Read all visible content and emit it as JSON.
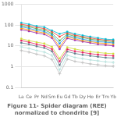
{
  "chart_data": {
    "type": "line",
    "title": "Figure 11- Spider diagram (REE) normalized to chondrite [9]",
    "categories": [
      "La",
      "Ce",
      "Pr",
      "Nd",
      "Sm",
      "Eu",
      "Gd",
      "Tb",
      "Dy",
      "Ho",
      "Er",
      "Tm",
      "Yb"
    ],
    "log": "y",
    "ylim": [
      0.1,
      1000
    ],
    "yticks": [
      0.1,
      1,
      10,
      100,
      1000
    ],
    "grid": "y",
    "series": [
      {
        "color": "#00bcd4",
        "marker": "square",
        "values": [
          130,
          110,
          90,
          80,
          55,
          38,
          48,
          38,
          32,
          28,
          24,
          21,
          20
        ]
      },
      {
        "color": "#f44336",
        "marker": "square",
        "values": [
          110,
          95,
          78,
          68,
          48,
          28,
          42,
          33,
          28,
          24,
          21,
          19,
          18
        ]
      },
      {
        "color": "#4caf50",
        "marker": "square",
        "values": [
          95,
          82,
          67,
          58,
          40,
          18,
          36,
          29,
          25,
          21,
          19,
          17,
          16
        ]
      },
      {
        "color": "#2196f3",
        "marker": "square",
        "values": [
          82,
          70,
          57,
          49,
          34,
          13,
          31,
          25,
          21,
          18,
          16,
          15,
          14
        ]
      },
      {
        "color": "#ff9800",
        "marker": "square",
        "values": [
          70,
          60,
          49,
          42,
          29,
          9,
          27,
          22,
          18,
          16,
          14,
          13,
          12
        ]
      },
      {
        "color": "#9c27b0",
        "marker": "square",
        "values": [
          60,
          51,
          42,
          36,
          24,
          7,
          23,
          19,
          16,
          14,
          12,
          11,
          10
        ]
      },
      {
        "color": "#cddc39",
        "marker": "square",
        "values": [
          22,
          18,
          15,
          13,
          9,
          2.5,
          8.5,
          7,
          6,
          5.2,
          4.8,
          4.4,
          4.2
        ]
      },
      {
        "color": "#e91e63",
        "marker": "square",
        "values": [
          18,
          15,
          12,
          10,
          7,
          1.8,
          6.8,
          5.5,
          4.8,
          4.2,
          3.8,
          3.5,
          3.3
        ]
      },
      {
        "color": "#607d8b",
        "marker": "square",
        "values": [
          14,
          12,
          9.5,
          8,
          5.5,
          1.2,
          5.3,
          4.3,
          3.7,
          3.3,
          3.0,
          2.7,
          2.6
        ]
      },
      {
        "color": "#b2dfdb",
        "marker": "plus",
        "values": [
          9,
          7.5,
          6,
          5,
          3.5,
          0.7,
          3.5,
          2.8,
          2.4,
          2.1,
          1.9,
          1.7,
          1.6
        ]
      },
      {
        "color": "#bdbdbd",
        "marker": "plus",
        "values": [
          6,
          5,
          4,
          3.3,
          2.2,
          0.45,
          2.3,
          1.8,
          1.55,
          1.35,
          1.22,
          1.1,
          1.05
        ]
      }
    ]
  }
}
